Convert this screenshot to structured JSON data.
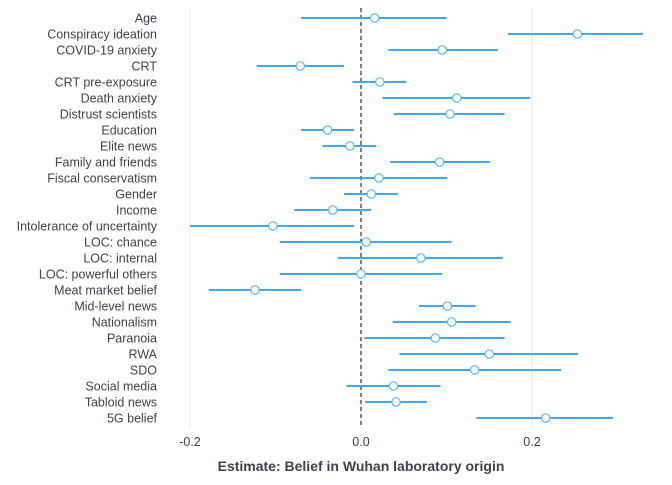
{
  "chart_data": {
    "type": "scatter",
    "subtype": "forest-plot",
    "xlabel": "Estimate: Belief in Wuhan laboratory origin",
    "ylabel": "",
    "xlim": [
      -0.2,
      0.33
    ],
    "x_ticks": [
      -0.2,
      0.0,
      0.2
    ],
    "x_tick_labels": [
      "-0.2",
      "0.0",
      "0.2"
    ],
    "reference_line": 0,
    "grid": "vertical major",
    "point_color": "#5BB8F0",
    "interval_color": "#42A8E8",
    "zero_line_color": "#000000",
    "rows": [
      {
        "label": "Age",
        "estimate": 0.016,
        "low": -0.07,
        "high": 0.1
      },
      {
        "label": "Conspiracy ideation",
        "estimate": 0.253,
        "low": 0.172,
        "high": 0.33
      },
      {
        "label": "COVID-19 anxiety",
        "estimate": 0.095,
        "low": 0.032,
        "high": 0.16
      },
      {
        "label": "CRT",
        "estimate": -0.071,
        "low": -0.122,
        "high": -0.02
      },
      {
        "label": "CRT pre-exposure",
        "estimate": 0.022,
        "low": -0.01,
        "high": 0.053
      },
      {
        "label": "Death anxiety",
        "estimate": 0.112,
        "low": 0.025,
        "high": 0.198
      },
      {
        "label": "Distrust scientists",
        "estimate": 0.104,
        "low": 0.038,
        "high": 0.168
      },
      {
        "label": "Education",
        "estimate": -0.039,
        "low": -0.07,
        "high": -0.008
      },
      {
        "label": "Elite news",
        "estimate": -0.013,
        "low": -0.045,
        "high": 0.018
      },
      {
        "label": "Family and friends",
        "estimate": 0.092,
        "low": 0.034,
        "high": 0.151
      },
      {
        "label": "Fiscal conservatism",
        "estimate": 0.021,
        "low": -0.06,
        "high": 0.101
      },
      {
        "label": "Gender",
        "estimate": 0.012,
        "low": -0.02,
        "high": 0.043
      },
      {
        "label": "Income",
        "estimate": -0.033,
        "low": -0.078,
        "high": 0.012
      },
      {
        "label": "Intolerance of uncertainty",
        "estimate": -0.103,
        "low": -0.2,
        "high": -0.008
      },
      {
        "label": "LOC: chance",
        "estimate": 0.006,
        "low": -0.095,
        "high": 0.106
      },
      {
        "label": "LOC: internal",
        "estimate": 0.07,
        "low": -0.027,
        "high": 0.166
      },
      {
        "label": "LOC: powerful others",
        "estimate": 0.0,
        "low": -0.095,
        "high": 0.095
      },
      {
        "label": "Meat market belief",
        "estimate": -0.124,
        "low": -0.178,
        "high": -0.07
      },
      {
        "label": "Mid-level news",
        "estimate": 0.101,
        "low": 0.068,
        "high": 0.134
      },
      {
        "label": "Nationalism",
        "estimate": 0.106,
        "low": 0.037,
        "high": 0.175
      },
      {
        "label": "Paranoia",
        "estimate": 0.087,
        "low": 0.004,
        "high": 0.168
      },
      {
        "label": "RWA",
        "estimate": 0.15,
        "low": 0.045,
        "high": 0.254
      },
      {
        "label": "SDO",
        "estimate": 0.133,
        "low": 0.032,
        "high": 0.234
      },
      {
        "label": "Social media",
        "estimate": 0.038,
        "low": -0.017,
        "high": 0.093
      },
      {
        "label": "Tabloid news",
        "estimate": 0.041,
        "low": 0.005,
        "high": 0.077
      },
      {
        "label": "5G belief",
        "estimate": 0.216,
        "low": 0.135,
        "high": 0.295
      }
    ]
  }
}
